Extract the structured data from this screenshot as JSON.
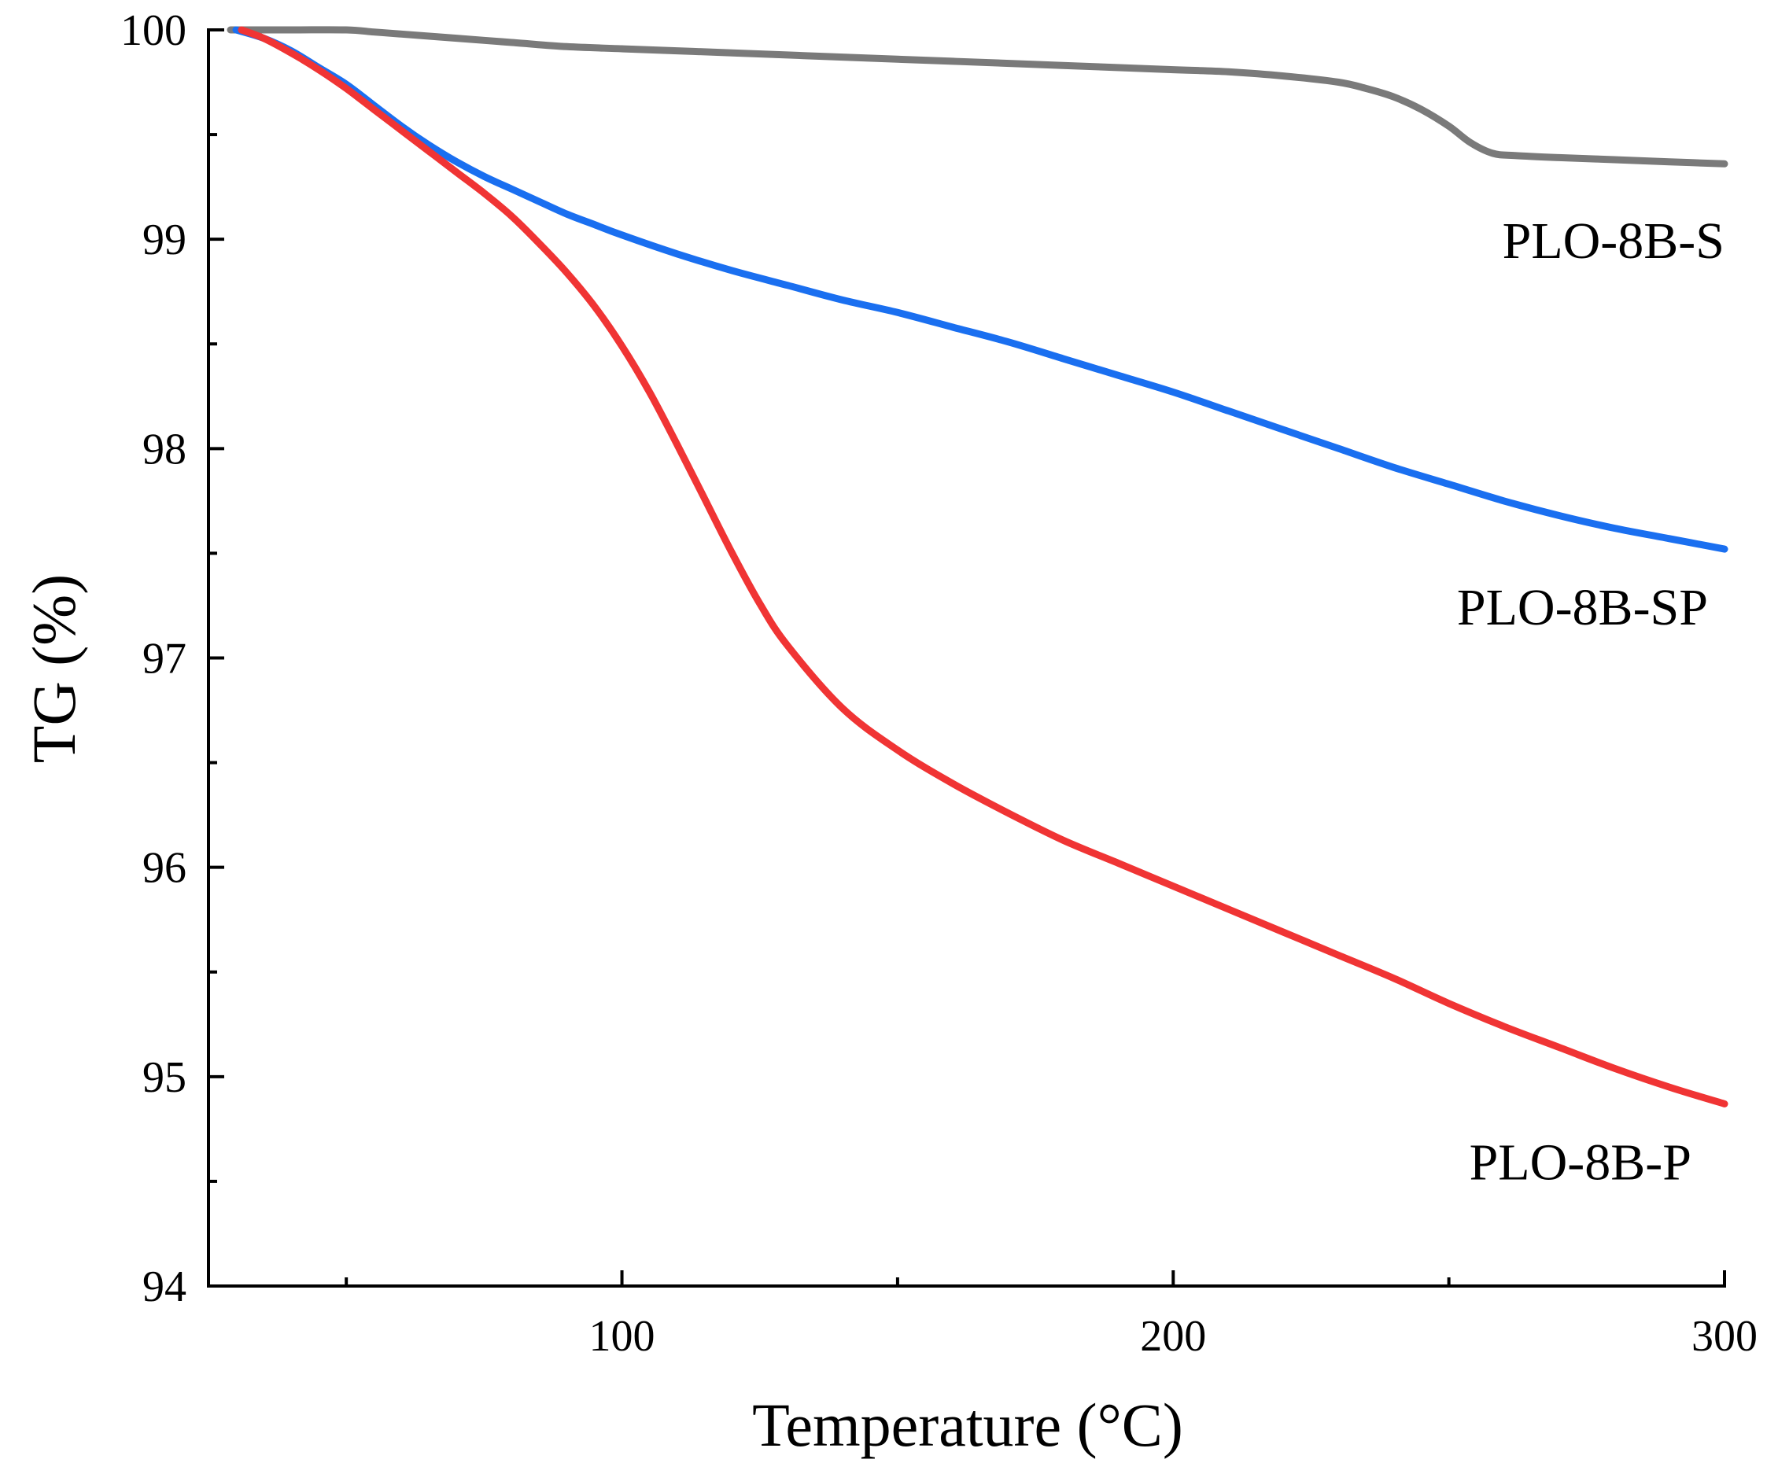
{
  "chart_data": {
    "type": "line",
    "xlabel": "Temperature (°C)",
    "ylabel": "TG (%)",
    "xlim": [
      25,
      300
    ],
    "ylim": [
      94,
      100
    ],
    "x_ticks": [
      100,
      200,
      300
    ],
    "y_ticks": [
      94,
      95,
      96,
      97,
      98,
      99,
      100
    ],
    "x_minor_ticks": [
      50,
      150,
      250
    ],
    "y_minor_ticks": [
      94.5,
      95.5,
      96.5,
      97.5,
      98.5,
      99.5
    ],
    "grid": false,
    "legend": "none",
    "series": [
      {
        "name": "PLO-8B-S",
        "color": "#7a7a7a",
        "label_x": 300,
        "label_y": 99.0,
        "x": [
          29,
          40,
          50,
          55,
          60,
          70,
          80,
          90,
          100,
          110,
          120,
          140,
          160,
          180,
          200,
          210,
          220,
          230,
          235,
          240,
          245,
          250,
          254,
          258,
          262,
          270,
          280,
          290,
          300
        ],
        "y": [
          100.0,
          100.0,
          100.0,
          99.99,
          99.98,
          99.96,
          99.94,
          99.92,
          99.91,
          99.9,
          99.89,
          99.87,
          99.85,
          99.83,
          99.81,
          99.8,
          99.78,
          99.75,
          99.72,
          99.68,
          99.62,
          99.54,
          99.46,
          99.41,
          99.4,
          99.39,
          99.38,
          99.37,
          99.36
        ]
      },
      {
        "name": "PLO-8B-SP",
        "color": "#1a6ff0",
        "label_x": 297,
        "label_y": 97.25,
        "x": [
          30,
          35,
          40,
          45,
          50,
          55,
          60,
          65,
          70,
          75,
          80,
          85,
          90,
          95,
          100,
          110,
          120,
          130,
          140,
          150,
          160,
          170,
          180,
          190,
          200,
          210,
          220,
          230,
          240,
          250,
          260,
          270,
          280,
          290,
          300
        ],
        "y": [
          100.0,
          99.96,
          99.9,
          99.82,
          99.74,
          99.64,
          99.54,
          99.45,
          99.37,
          99.3,
          99.24,
          99.18,
          99.12,
          99.07,
          99.02,
          98.93,
          98.85,
          98.78,
          98.71,
          98.65,
          98.58,
          98.51,
          98.43,
          98.35,
          98.27,
          98.18,
          98.09,
          98.0,
          97.91,
          97.83,
          97.75,
          97.68,
          97.62,
          97.57,
          97.52
        ]
      },
      {
        "name": "PLO-8B-P",
        "color": "#f03434",
        "label_x": 294,
        "label_y": 94.6,
        "x": [
          31,
          35,
          40,
          45,
          50,
          55,
          60,
          65,
          70,
          75,
          80,
          85,
          90,
          95,
          100,
          105,
          110,
          115,
          120,
          125,
          130,
          140,
          150,
          160,
          170,
          180,
          190,
          200,
          210,
          220,
          230,
          240,
          250,
          260,
          270,
          280,
          290,
          300
        ],
        "y": [
          100.0,
          99.96,
          99.89,
          99.81,
          99.72,
          99.62,
          99.52,
          99.42,
          99.32,
          99.22,
          99.11,
          98.98,
          98.84,
          98.68,
          98.49,
          98.27,
          98.02,
          97.76,
          97.5,
          97.26,
          97.06,
          96.76,
          96.56,
          96.4,
          96.26,
          96.13,
          96.02,
          95.91,
          95.8,
          95.69,
          95.58,
          95.47,
          95.35,
          95.24,
          95.14,
          95.04,
          94.95,
          94.87
        ]
      }
    ]
  }
}
